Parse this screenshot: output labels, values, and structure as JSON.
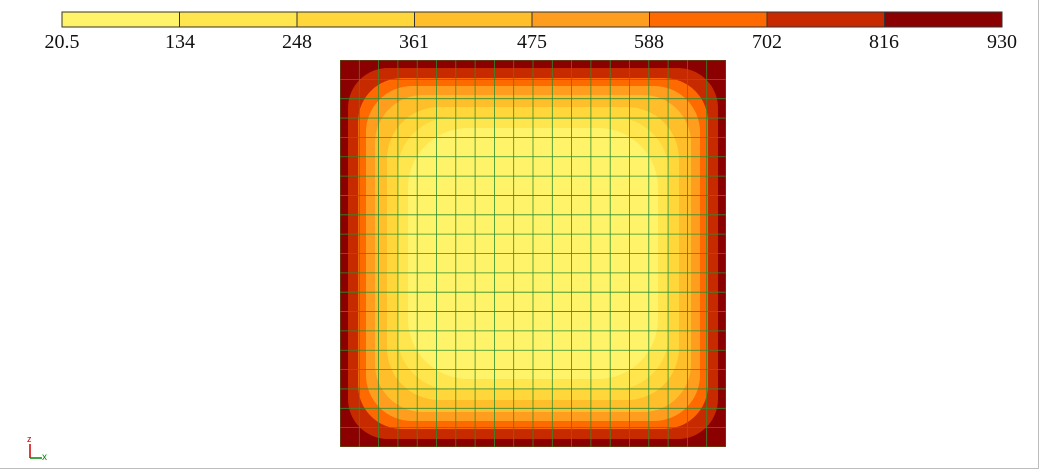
{
  "legend": {
    "ticks": [
      "20.5",
      "134",
      "248",
      "361",
      "475",
      "588",
      "702",
      "816",
      "930"
    ],
    "colors": [
      "#FFF36A",
      "#FFE64E",
      "#FFD73A",
      "#FFBF2A",
      "#FF9E1E",
      "#FF6A00",
      "#C82A00",
      "#8B0000"
    ]
  },
  "plot": {
    "grid_divisions": 20,
    "grid_color": "#2E8B2E",
    "background": "#8B0000"
  },
  "triad": {
    "axis_z": "z",
    "axis_x": "x",
    "color_z": "#cc0000",
    "color_x": "#008800"
  }
}
